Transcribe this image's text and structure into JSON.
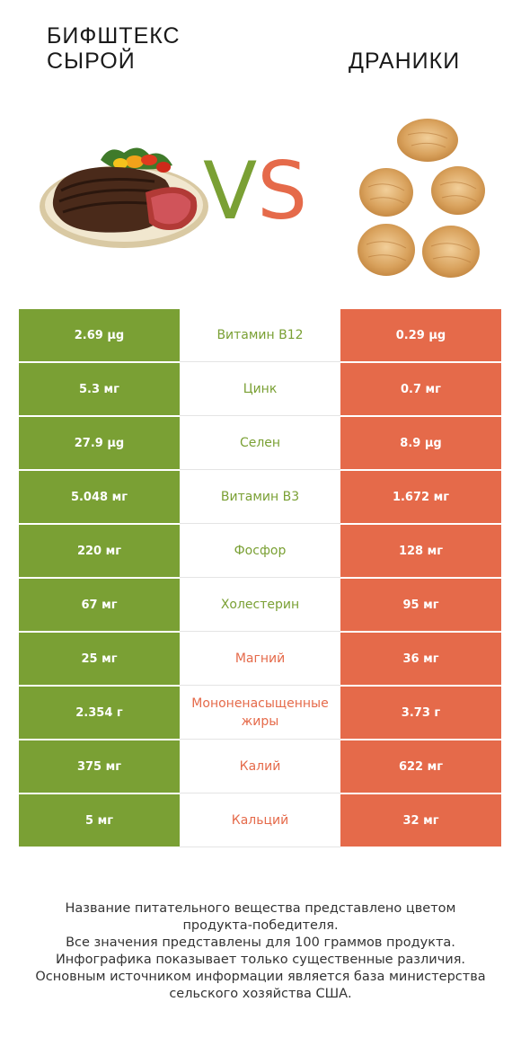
{
  "header": {
    "left_title_line1": "БИФШТЕКС",
    "left_title_line2": "СЫРОЙ",
    "right_title": "ДРАНИКИ",
    "vs_v": "V",
    "vs_s": "S"
  },
  "colors": {
    "left": "#7aa034",
    "right": "#e56a4a"
  },
  "rows": [
    {
      "left": "2.69 µg",
      "nutrient": "Витамин B12",
      "right": "0.29 µg",
      "winner": "left"
    },
    {
      "left": "5.3 мг",
      "nutrient": "Цинк",
      "right": "0.7 мг",
      "winner": "left"
    },
    {
      "left": "27.9 µg",
      "nutrient": "Селен",
      "right": "8.9 µg",
      "winner": "left"
    },
    {
      "left": "5.048 мг",
      "nutrient": "Витамин B3",
      "right": "1.672 мг",
      "winner": "left"
    },
    {
      "left": "220 мг",
      "nutrient": "Фосфор",
      "right": "128 мг",
      "winner": "left"
    },
    {
      "left": "67 мг",
      "nutrient": "Холестерин",
      "right": "95 мг",
      "winner": "left"
    },
    {
      "left": "25 мг",
      "nutrient": "Магний",
      "right": "36 мг",
      "winner": "right"
    },
    {
      "left": "2.354 г",
      "nutrient": "Мононенасыщенные жиры",
      "right": "3.73 г",
      "winner": "right"
    },
    {
      "left": "375 мг",
      "nutrient": "Калий",
      "right": "622 мг",
      "winner": "right"
    },
    {
      "left": "5 мг",
      "nutrient": "Кальций",
      "right": "32 мг",
      "winner": "right"
    }
  ],
  "footer": {
    "line1": "Название питательного вещества представлено цветом",
    "line2": "продукта-победителя.",
    "line3": "Все значения представлены для 100 граммов продукта.",
    "line4": "Инфографика показывает только существенные различия.",
    "line5": "Основным источником информации является база министерства",
    "line6": "сельского хозяйства США."
  }
}
